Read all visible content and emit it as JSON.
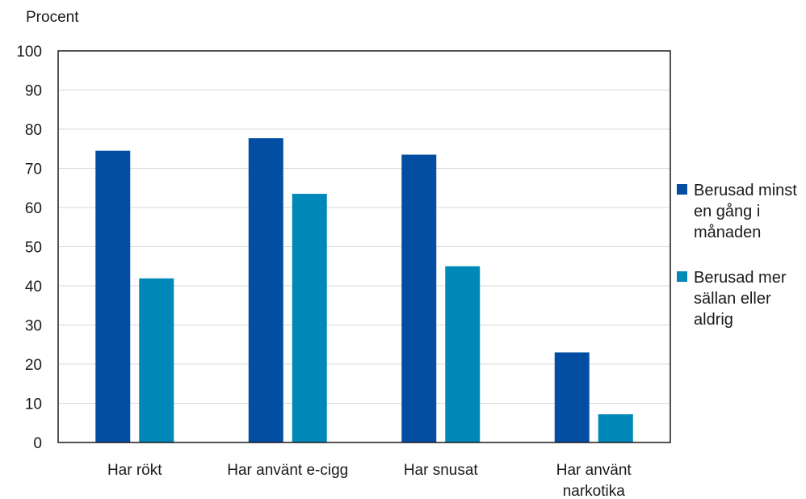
{
  "chart_data": {
    "type": "bar",
    "title": "",
    "ylabel": "Procent",
    "xlabel": "",
    "ylim": [
      0,
      100
    ],
    "yticks": [
      0,
      10,
      20,
      30,
      40,
      50,
      60,
      70,
      80,
      90,
      100
    ],
    "grid": true,
    "legend_position": "right",
    "categories": [
      [
        "Har rökt"
      ],
      [
        "Har använt e-cigg"
      ],
      [
        "Har snusat"
      ],
      [
        "Har använt",
        "narkotika"
      ]
    ],
    "series": [
      {
        "name": [
          "Berusad minst",
          "en gång i",
          "månaden"
        ],
        "color": "#034ea2",
        "values": [
          74.5,
          77.7,
          73.5,
          23.0
        ]
      },
      {
        "name": [
          "Berusad mer",
          "sällan eller",
          "aldrig"
        ],
        "color": "#0088b8",
        "values": [
          41.9,
          63.5,
          45.0,
          7.2
        ]
      }
    ]
  }
}
